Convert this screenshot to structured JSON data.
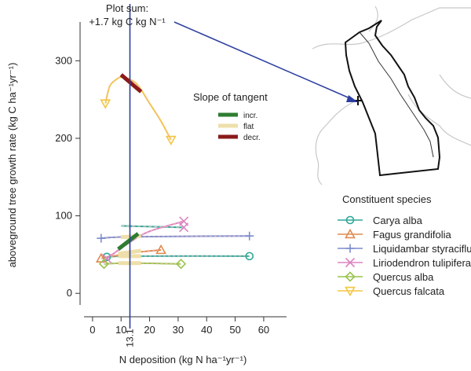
{
  "chart_data": {
    "type": "line",
    "title": "",
    "xlabel": "N deposition (kg N ha⁻¹yr⁻¹)",
    "ylabel": "aboveground tree growth rate (kg C ha⁻¹yr⁻¹)",
    "xlim": [
      -3,
      68
    ],
    "ylim": [
      -15,
      350
    ],
    "xticks": [
      0,
      10,
      20,
      30,
      40,
      50,
      60
    ],
    "yticks": [
      0,
      100,
      200,
      300
    ],
    "marked_x": {
      "value": 13.1,
      "label": "13.1",
      "annotation_line1": "Plot sum:",
      "annotation_line2": "+1.7 kg C kg N⁻¹"
    },
    "slope_legend": {
      "title": "Slope of tangent",
      "entries": [
        {
          "label": "incr.",
          "color": "#2e7d32"
        },
        {
          "label": "flat",
          "color": "#eedfaa"
        },
        {
          "label": "decr.",
          "color": "#8b1a1a"
        }
      ]
    },
    "species_legend_title": "Constituent species",
    "series": [
      {
        "name": "Carya alba",
        "color": "#2ea898",
        "marker": "circle",
        "x": [
          5,
          13.1,
          55
        ],
        "y": [
          47,
          48,
          48
        ],
        "tangent": {
          "type": "flat",
          "x": [
            9,
            17
          ],
          "y": [
            48,
            48
          ]
        }
      },
      {
        "name": "Fagus grandifolia",
        "color": "#e08a4f",
        "marker": "triangle",
        "x": [
          3,
          10,
          13.1,
          18,
          24
        ],
        "y": [
          45,
          50,
          52,
          54,
          56
        ],
        "tangent": {
          "type": "flat",
          "x": [
            9,
            17
          ],
          "y": [
            51,
            55
          ]
        }
      },
      {
        "name": "Liquidambar styraciflua",
        "color": "#7b8cce",
        "marker": "plus",
        "x": [
          3,
          13.1,
          55
        ],
        "y": [
          71,
          73,
          74
        ],
        "tangent": {
          "type": "flat",
          "x": [
            10,
            17
          ],
          "y": [
            72.5,
            74
          ]
        }
      },
      {
        "name": "Liriodendron tulipifera",
        "color": "#dd84c0",
        "marker": "x",
        "x": [
          5,
          13.1,
          20,
          32
        ],
        "y": [
          45,
          66,
          80,
          93
        ],
        "tangent": {
          "type": "incr",
          "x": [
            9,
            16
          ],
          "y": [
            57,
            77
          ]
        }
      },
      {
        "name": "Quercus alba",
        "color": "#9ac34d",
        "marker": "diamond",
        "x": [
          4,
          13.1,
          31
        ],
        "y": [
          38,
          39,
          38
        ],
        "tangent": {
          "type": "flat",
          "x": [
            9,
            17
          ],
          "y": [
            39,
            39
          ]
        }
      },
      {
        "name": "Quercus falcata",
        "color": "#f3c544",
        "marker": "triangle-down",
        "x": [
          4.5,
          6,
          8,
          10,
          13.1,
          16,
          20,
          24,
          27.5
        ],
        "y": [
          245,
          267,
          275,
          279,
          276,
          268,
          245,
          222,
          198
        ],
        "tangent": {
          "type": "decr",
          "x": [
            10,
            17
          ],
          "y": [
            282,
            260
          ]
        }
      }
    ],
    "extra_curves": [
      {
        "name": "Carya alba (minor)",
        "color": "#2ea898",
        "x": [
          10,
          32
        ],
        "y": [
          87,
          85
        ],
        "marker_end": "x"
      }
    ]
  }
}
